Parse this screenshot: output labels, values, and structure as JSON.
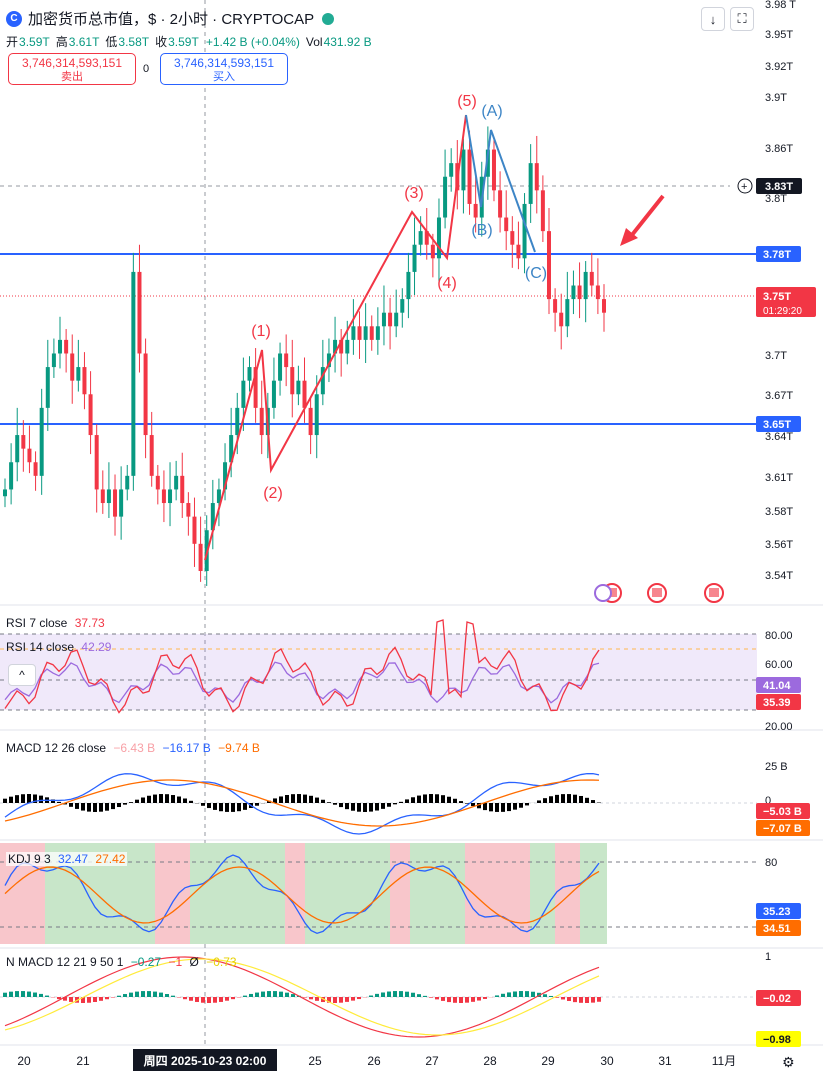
{
  "header": {
    "title": "加密货币总市值，$ · 2小时 · CRYPTOCAP",
    "ohlc": [
      {
        "key": "开",
        "value": "3.59T"
      },
      {
        "key": "高",
        "value": "3.61T"
      },
      {
        "key": "低",
        "value": "3.58T"
      },
      {
        "key": "收",
        "value": "3.59T"
      },
      {
        "key": "",
        "value": "+1.42 B (+0.04%)"
      },
      {
        "key": "Vol",
        "value": "431.92 B"
      }
    ]
  },
  "trade": {
    "sell_price": "3,746,314,593,151",
    "sell_label": "卖出",
    "spread": "0",
    "buy_price": "3,746,314,593,151",
    "buy_label": "买入"
  },
  "colors": {
    "up": "#089981",
    "down": "#f23645",
    "blue": "#2962ff",
    "wave_red": "#f23645",
    "wave_blue": "#3d85c6",
    "rsi7": "#f23645",
    "rsi14": "#9c6ade",
    "macd": "#2962ff",
    "signal": "#ff6d00",
    "kdj_fill_green": "#c8e6c9",
    "kdj_fill_red": "#f8c6cb"
  },
  "panes": {
    "rsi": {
      "label7": "RSI 7 close",
      "value7": "37.73",
      "label14": "RSI 14 close",
      "value14": "42.29",
      "badge1": "41.04",
      "badge2": "35.39",
      "ticks": [
        "80.00",
        "60.00",
        "20.00"
      ]
    },
    "macd": {
      "label": "MACD 12 26 close",
      "v1": "−6.43 B",
      "v2": "−16.17 B",
      "v3": "−9.74 B",
      "badge1": "−5.03 B",
      "badge2": "−7.07 B",
      "ticks": [
        "25 B",
        "0"
      ]
    },
    "kdj": {
      "label": "KDJ 9 3",
      "v1": "32.47",
      "v2": "27.42",
      "badge1": "35.23",
      "badge2": "34.51",
      "ticks": [
        "80"
      ]
    },
    "nmacd": {
      "label": "N MACD 12 21 9 50 1",
      "v1": "−0.27",
      "v2": "−1",
      "v3": "Ø",
      "v4": "−0.73",
      "badge1": "−0.02",
      "badge2": "−0.98",
      "ticks": [
        "1"
      ]
    }
  },
  "chart_data": {
    "type": "candlestick",
    "y_ticks": [
      "3.98 T",
      "3.95T",
      "3.92T",
      "3.9T",
      "3.86T",
      "3.83T",
      "3.8T",
      "3.75T",
      "3.7T",
      "3.67T",
      "3.64T",
      "3.61T",
      "3.58T",
      "3.56T",
      "3.54T"
    ],
    "x_ticks": [
      "20",
      "21",
      "周四 2025-10-23  02:00",
      "25",
      "26",
      "27",
      "28",
      "29",
      "30",
      "31",
      "11月"
    ],
    "ylim": [
      3.535,
      3.98
    ],
    "hlines": [
      {
        "price": 3.78,
        "label": "3.78T",
        "style": "solid"
      },
      {
        "price": 3.65,
        "label": "3.65T",
        "style": "solid"
      }
    ],
    "crosshair_label": "3.83T",
    "last_price": {
      "price": 3.75,
      "label": "3.75T",
      "countdown": "01:29:20"
    },
    "waves": [
      {
        "label": "(1)",
        "price": 3.712
      },
      {
        "label": "(2)",
        "price": 3.618
      },
      {
        "label": "(3)",
        "price": 3.812
      },
      {
        "label": "(4)",
        "price": 3.778
      },
      {
        "label": "(5)",
        "price": 3.88
      },
      {
        "label": "(A)",
        "price": 3.81
      },
      {
        "label": "(B)",
        "price": 3.87
      },
      {
        "label": "(C)",
        "price": 3.78
      }
    ],
    "close_path": [
      3.62,
      3.64,
      3.66,
      3.65,
      3.64,
      3.63,
      3.68,
      3.71,
      3.72,
      3.73,
      3.72,
      3.7,
      3.71,
      3.69,
      3.66,
      3.62,
      3.61,
      3.62,
      3.6,
      3.62,
      3.63,
      3.78,
      3.72,
      3.66,
      3.63,
      3.62,
      3.61,
      3.62,
      3.63,
      3.61,
      3.6,
      3.58,
      3.56,
      3.59,
      3.61,
      3.62,
      3.64,
      3.66,
      3.68,
      3.7,
      3.71,
      3.68,
      3.66,
      3.68,
      3.7,
      3.72,
      3.71,
      3.69,
      3.7,
      3.68,
      3.66,
      3.69,
      3.71,
      3.72,
      3.73,
      3.72,
      3.73,
      3.74,
      3.73,
      3.74,
      3.73,
      3.74,
      3.75,
      3.74,
      3.75,
      3.76,
      3.78,
      3.8,
      3.81,
      3.8,
      3.79,
      3.82,
      3.85,
      3.86,
      3.84,
      3.87,
      3.83,
      3.82,
      3.85,
      3.87,
      3.84,
      3.82,
      3.81,
      3.8,
      3.79,
      3.83,
      3.86,
      3.84,
      3.81,
      3.76,
      3.75,
      3.74,
      3.76,
      3.77,
      3.76,
      3.78,
      3.77,
      3.76,
      3.75
    ]
  }
}
